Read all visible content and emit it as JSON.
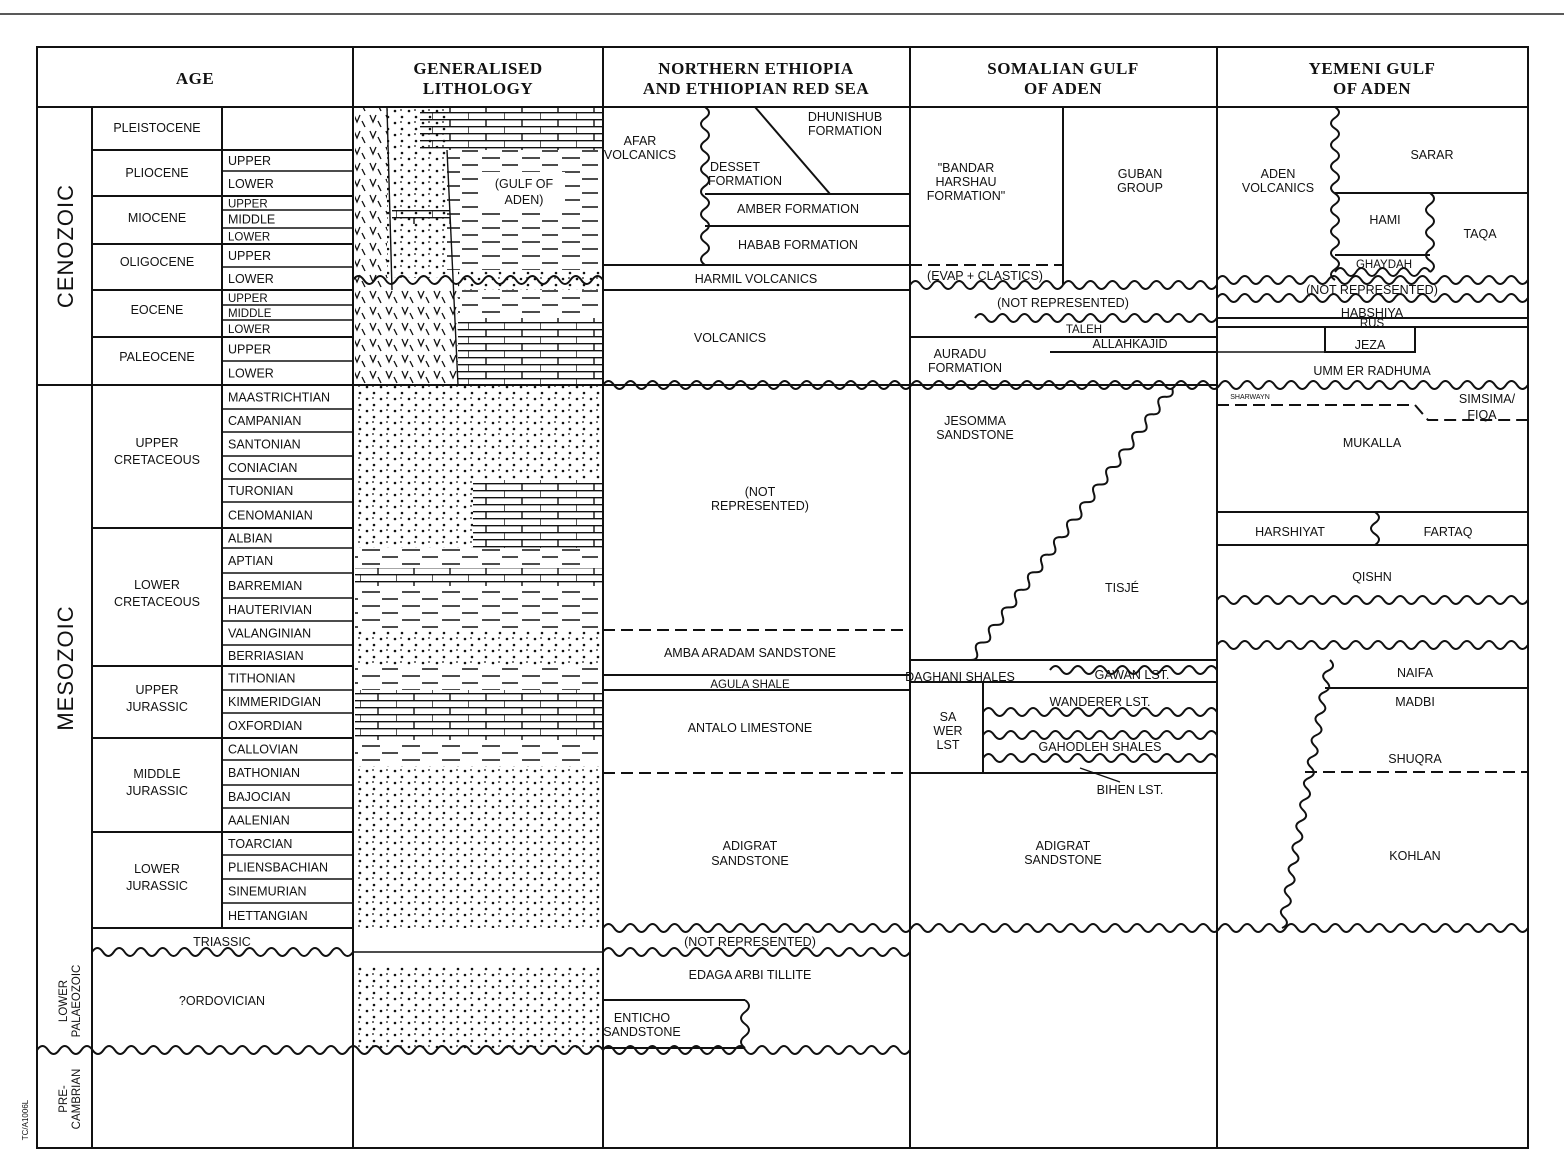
{
  "headers": {
    "age": "AGE",
    "lithology_1": "GENERALISED",
    "lithology_2": "LITHOLOGY",
    "ethiopia_1": "NORTHERN ETHIOPIA",
    "ethiopia_2": "AND ETHIOPIAN RED SEA",
    "somalia_1": "SOMALIAN GULF",
    "somalia_2": "OF ADEN",
    "yemen_1": "YEMENI GULF",
    "yemen_2": "OF ADEN"
  },
  "eras": {
    "cenozoic": "CENOZOIC",
    "mesozoic": "MESOZOIC",
    "lower_palaeozoic_1": "LOWER",
    "lower_palaeozoic_2": "PALAEOZOIC",
    "precambrian_1": "PRE-",
    "precambrian_2": "CAMBRIAN"
  },
  "epochs": {
    "pleistocene": "PLEISTOCENE",
    "pliocene": "PLIOCENE",
    "miocene": "MIOCENE",
    "oligocene": "OLIGOCENE",
    "eocene": "EOCENE",
    "paleocene": "PALEOCENE",
    "upper_cretaceous_1": "UPPER",
    "upper_cretaceous_2": "CRETACEOUS",
    "lower_cretaceous_1": "LOWER",
    "lower_cretaceous_2": "CRETACEOUS",
    "upper_jurassic_1": "UPPER",
    "upper_jurassic_2": "JURASSIC",
    "middle_jurassic_1": "MIDDLE",
    "middle_jurassic_2": "JURASSIC",
    "lower_jurassic_1": "LOWER",
    "lower_jurassic_2": "JURASSIC",
    "triassic": "TRIASSIC",
    "ordovician": "?ORDOVICIAN"
  },
  "stages": {
    "pliocene_upper": "UPPER",
    "pliocene_lower": "LOWER",
    "miocene_upper": "UPPER",
    "miocene_middle": "MIDDLE",
    "miocene_lower": "LOWER",
    "oligocene_upper": "UPPER",
    "oligocene_lower": "LOWER",
    "eocene_upper": "UPPER",
    "eocene_middle": "MIDDLE",
    "eocene_lower": "LOWER",
    "paleocene_upper": "UPPER",
    "paleocene_lower": "LOWER",
    "maastrichtian": "MAASTRICHTIAN",
    "campanian": "CAMPANIAN",
    "santonian": "SANTONIAN",
    "coniacian": "CONIACIAN",
    "turonian": "TURONIAN",
    "cenomanian": "CENOMANIAN",
    "albian": "ALBIAN",
    "aptian": "APTIAN",
    "barremian": "BARREMIAN",
    "hauterivian": "HAUTERIVIAN",
    "valanginian": "VALANGINIAN",
    "berriasian": "BERRIASIAN",
    "tithonian": "TITHONIAN",
    "kimmeridgian": "KIMMERIDGIAN",
    "oxfordian": "OXFORDIAN",
    "callovian": "CALLOVIAN",
    "bathonian": "BATHONIAN",
    "bajocian": "BAJOCIAN",
    "aalenian": "AALENIAN",
    "toarcian": "TOARCIAN",
    "pliensbachian": "PLIENSBACHIAN",
    "sinemurian": "SINEMURIAN",
    "hettangian": "HETTANGIAN"
  },
  "lithology": {
    "gulf_of_aden_1": "(GULF OF",
    "gulf_of_aden_2": "ADEN)"
  },
  "ethiopia": {
    "afar_1": "AFAR",
    "afar_2": "VOLCANICS",
    "dhunishub_1": "DHUNISHUB",
    "dhunishub_2": "FORMATION",
    "desset_1": "DESSET",
    "desset_2": "FORMATION",
    "amber": "AMBER FORMATION",
    "habab": "HABAB FORMATION",
    "harmil": "HARMIL VOLCANICS",
    "volcanics": "VOLCANICS",
    "not_rep_1": "(NOT",
    "not_rep_2": "REPRESENTED)",
    "amba_aradam": "AMBA ARADAM SANDSTONE",
    "agula": "AGULA SHALE",
    "antalo": "ANTALO LIMESTONE",
    "adigrat_1": "ADIGRAT",
    "adigrat_2": "SANDSTONE",
    "not_rep_triassic": "(NOT REPRESENTED)",
    "edaga_arbi": "EDAGA ARBI TILLITE",
    "enticho_1": "ENTICHO",
    "enticho_2": "SANDSTONE"
  },
  "somalia": {
    "bandar_1": "\"BANDAR",
    "bandar_2": "HARSHAU",
    "bandar_3": "FORMATION\"",
    "guban_1": "GUBAN",
    "guban_2": "GROUP",
    "evap": "(EVAP + CLASTICS)",
    "not_rep": "(NOT REPRESENTED)",
    "taleh": "TALEH",
    "allahkajid": "ALLAHKAJID",
    "auradu_1": "AURADU",
    "auradu_2": "FORMATION",
    "jesomma_1": "JESOMMA",
    "jesomma_2": "SANDSTONE",
    "tisje": "TISJÉ",
    "daghani": "DAGHANI SHALES",
    "gawan": "GAWAN LST.",
    "wanderer": "WANDERER LST.",
    "sawer_1": "SA",
    "sawer_2": "WER",
    "sawer_3": "LST",
    "gahodleh": "GAHODLEH SHALES",
    "bihen": "BIHEN LST.",
    "adigrat_1": "ADIGRAT",
    "adigrat_2": "SANDSTONE"
  },
  "yemen": {
    "aden_1": "ADEN",
    "aden_2": "VOLCANICS",
    "sarar": "SARAR",
    "hami": "HAMI",
    "taqa": "TAQA",
    "ghaydah": "GHAYDAH",
    "not_rep": "(NOT REPRESENTED)",
    "habshiya": "HABSHIYA",
    "rus": "RUS",
    "jeza": "JEZA",
    "umm_er_radhuma": "UMM ER RADHUMA",
    "sharwayn": "SHARWAYN",
    "simsima_1": "SIMSIMA/",
    "simsima_2": "FIQA",
    "mukalla": "MUKALLA",
    "harshiyat": "HARSHIYAT",
    "fartaq": "FARTAQ",
    "qishn": "QISHN",
    "naifa": "NAIFA",
    "madbi": "MADBI",
    "shuqra": "SHUQRA",
    "kohlan": "KOHLAN"
  },
  "figure_code": "TC/A1006L"
}
